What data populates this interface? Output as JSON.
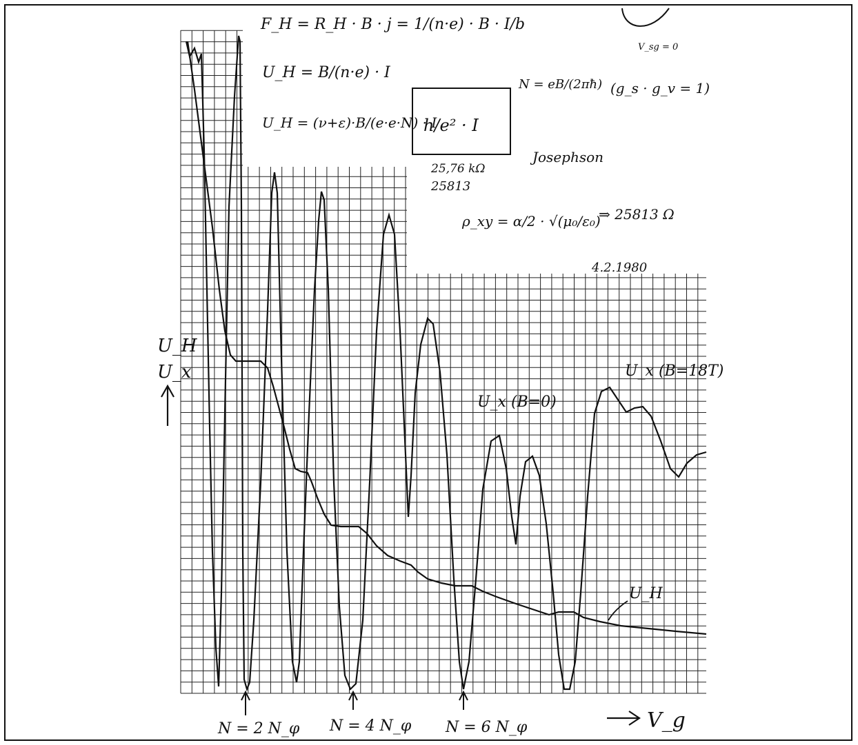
{
  "formulas": {
    "line1": "F_H = R_H · B · j = 1/(n·e) · B · I/b",
    "line2": "U_H = B/(n·e) · I",
    "line3": "U_H = (ν+ε)·B/(e·e·N) · I",
    "boxed": "h/e² · I",
    "n_relation": "N = eB/(2πħ)",
    "g_relation": "(g_s · g_v = 1)",
    "resistance_note1": "25,76 kΩ",
    "resistance_note2": "25813",
    "josephson": "Josephson",
    "alpha_formula": "ρ_xy = α/2 · √(μ₀/ε₀)",
    "alpha_result": "⇒ 25813 Ω",
    "top_right_note": "V_sg = 0",
    "date": "4.2.1980"
  },
  "axes": {
    "y_label_1": "U_H",
    "y_label_2": "U_x",
    "x_label": "V_g"
  },
  "curve_labels": {
    "ux_b0": "U_x (B=0)",
    "ux_b18": "U_x (B=18T)",
    "uh": "U_H"
  },
  "markers": [
    {
      "label": "N = 2 N_φ"
    },
    {
      "label": "N = 4 N_φ"
    },
    {
      "label": "N = 6 N_φ"
    }
  ]
}
